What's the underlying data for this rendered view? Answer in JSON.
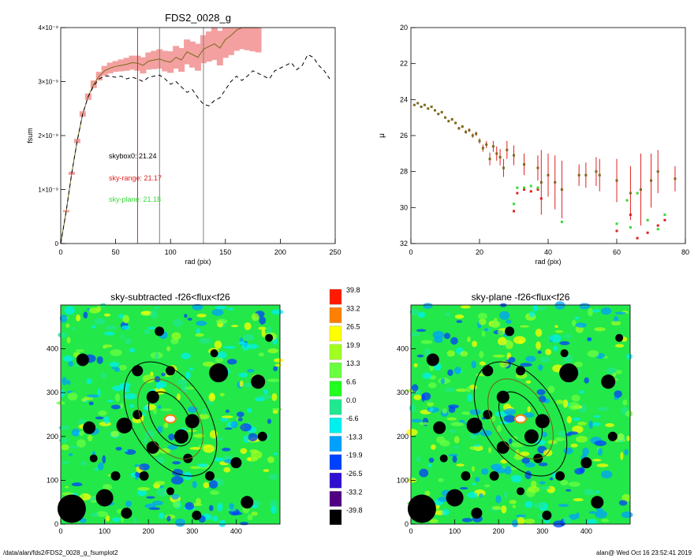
{
  "footer": {
    "path": "/data/alan/fds2/FDS2_0028_g_fsumplot2",
    "stamp": "alan@  Wed Oct 16 23:52:41 2019"
  },
  "colors": {
    "profile": "#7a6a1a",
    "error_band": "#f4a0a0",
    "red_marker": "#e02020",
    "green_marker": "#38d838",
    "gray_line": "#808080",
    "dashed": "#000000"
  },
  "chart_data": [
    {
      "type": "line",
      "title": "FDS2_0028_g",
      "xlabel": "rad (pix)",
      "ylabel": "fsum",
      "xlim": [
        0,
        250
      ],
      "ylim": [
        0,
        4e-09
      ],
      "xticks": [
        "0",
        "50",
        "100",
        "150",
        "200",
        "250"
      ],
      "yticks": [
        "0",
        "1×10⁻⁹",
        "2×10⁻⁹",
        "3×10⁻⁹",
        "4×10⁻⁹"
      ],
      "vlines": [
        {
          "x": 70,
          "color": "red"
        },
        {
          "x": 90,
          "color": "gray"
        },
        {
          "x": 130,
          "color": "gray"
        }
      ],
      "annotations": [
        {
          "text": "skybox0: 21.24",
          "color": "black"
        },
        {
          "text": "sky-range: 21.17",
          "color": "red"
        },
        {
          "text": "sky-plane: 21.18",
          "color": "green"
        }
      ],
      "series": [
        {
          "style": "solid",
          "color": "brown",
          "band": "red",
          "x": [
            0,
            5,
            10,
            15,
            20,
            25,
            30,
            35,
            40,
            45,
            50,
            55,
            60,
            65,
            70,
            75,
            80,
            85,
            90,
            95,
            100,
            105,
            110,
            115,
            120,
            125,
            130,
            135,
            140,
            145,
            150,
            155,
            160,
            165,
            170,
            175,
            180
          ],
          "y": [
            0,
            6e-10,
            1.3e-09,
            1.9e-09,
            2.4e-09,
            2.72e-09,
            2.95e-09,
            3.1e-09,
            3.2e-09,
            3.25e-09,
            3.28e-09,
            3.3e-09,
            3.32e-09,
            3.35e-09,
            3.34e-09,
            3.3e-09,
            3.38e-09,
            3.4e-09,
            3.42e-09,
            3.38e-09,
            3.36e-09,
            3.45e-09,
            3.4e-09,
            3.55e-09,
            3.5e-09,
            3.45e-09,
            3.6e-09,
            3.65e-09,
            3.7e-09,
            3.62e-09,
            3.78e-09,
            3.85e-09,
            3.95e-09,
            4e-09,
            4e-09,
            4e-09,
            4e-09
          ],
          "err": [
            0,
            2e-11,
            3e-11,
            4e-11,
            5e-11,
            6e-11,
            7e-11,
            8e-11,
            9e-11,
            1e-10,
            1e-10,
            1.1e-10,
            1.2e-10,
            1.3e-10,
            1.4e-10,
            1.5e-10,
            1.6e-10,
            1.7e-10,
            1.8e-10,
            1.9e-10,
            2e-10,
            2.1e-10,
            2.2e-10,
            2.3e-10,
            2.4e-10,
            2.5e-10,
            2.6e-10,
            2.8e-10,
            3e-10,
            3.2e-10,
            3.4e-10,
            3.6e-10,
            3.8e-10,
            4e-10,
            4.2e-10,
            4.4e-10,
            4.6e-10
          ]
        },
        {
          "style": "dashed",
          "color": "black",
          "x": [
            0,
            5,
            10,
            15,
            20,
            25,
            30,
            35,
            40,
            45,
            50,
            55,
            60,
            65,
            70,
            75,
            80,
            85,
            90,
            95,
            100,
            105,
            110,
            115,
            120,
            125,
            130,
            135,
            140,
            145,
            150,
            155,
            160,
            165,
            170,
            175,
            180,
            185,
            190,
            195,
            200,
            205,
            210,
            215,
            220,
            225,
            230,
            235,
            240,
            245
          ],
          "y": [
            0,
            6e-10,
            1.3e-09,
            1.9e-09,
            2.4e-09,
            2.72e-09,
            2.92e-09,
            3.05e-09,
            3.1e-09,
            3.1e-09,
            3.08e-09,
            3.1e-09,
            3.05e-09,
            3.08e-09,
            3.05e-09,
            3e-09,
            3.08e-09,
            3.1e-09,
            3.12e-09,
            3.05e-09,
            2.95e-09,
            3e-09,
            2.9e-09,
            2.8e-09,
            2.85e-09,
            2.7e-09,
            2.58e-09,
            2.55e-09,
            2.65e-09,
            2.7e-09,
            2.85e-09,
            3e-09,
            3.1e-09,
            3.02e-09,
            3.1e-09,
            3.2e-09,
            3.15e-09,
            3.1e-09,
            3.05e-09,
            3.2e-09,
            3.25e-09,
            3.3e-09,
            3.35e-09,
            3.22e-09,
            3.3e-09,
            3.5e-09,
            3.45e-09,
            3.3e-09,
            3.2e-09,
            3.05e-09
          ]
        }
      ]
    },
    {
      "type": "scatter",
      "title": "",
      "xlabel": "rad (pix)",
      "ylabel": "μ",
      "xlim": [
        0,
        80
      ],
      "ylim": [
        32,
        20
      ],
      "xticks": [
        "0",
        "20",
        "40",
        "60",
        "80"
      ],
      "yticks": [
        "20",
        "22",
        "24",
        "26",
        "28",
        "30",
        "32"
      ],
      "series": [
        {
          "marker": "brown-square",
          "errorbar": "red",
          "x": [
            1,
            2,
            3,
            4,
            5,
            6,
            7,
            8,
            9,
            10,
            11,
            12,
            13,
            14,
            15,
            16,
            17,
            18,
            19,
            20,
            21,
            22,
            23,
            24,
            25,
            26,
            27,
            28,
            30,
            33,
            37,
            38,
            40,
            42,
            44,
            49,
            51,
            54,
            55,
            60,
            64,
            67,
            70,
            72,
            77
          ],
          "y": [
            24.3,
            24.2,
            24.4,
            24.3,
            24.5,
            24.4,
            24.6,
            24.8,
            24.7,
            25.0,
            25.2,
            25.1,
            25.3,
            25.6,
            25.5,
            25.8,
            25.7,
            26.0,
            25.9,
            26.3,
            26.7,
            26.5,
            27.3,
            26.6,
            27.0,
            27.2,
            27.8,
            26.8,
            27.1,
            27.6,
            27.8,
            28.6,
            28.2,
            28.6,
            29.0,
            28.2,
            28.2,
            28.0,
            28.2,
            28.5,
            29.2,
            29.0,
            28.5,
            28.0,
            28.4
          ],
          "err": [
            0.05,
            0.05,
            0.05,
            0.05,
            0.05,
            0.05,
            0.05,
            0.05,
            0.06,
            0.06,
            0.06,
            0.07,
            0.07,
            0.08,
            0.08,
            0.1,
            0.1,
            0.12,
            0.12,
            0.15,
            0.2,
            0.2,
            0.35,
            0.3,
            0.4,
            0.45,
            0.5,
            0.5,
            0.55,
            0.6,
            0.7,
            1.8,
            1.2,
            1.5,
            1.6,
            0.6,
            0.7,
            0.8,
            0.9,
            1.2,
            1.5,
            2.0,
            1.5,
            1.2,
            0.7
          ]
        },
        {
          "marker": "red-square",
          "x": [
            30,
            31,
            33,
            35,
            37,
            38,
            60,
            64,
            66,
            69,
            72,
            74
          ],
          "y": [
            30.2,
            29.2,
            29.0,
            29.1,
            29.0,
            29.5,
            31.3,
            30.4,
            31.7,
            31.4,
            31.0,
            30.7
          ]
        },
        {
          "marker": "green-square",
          "x": [
            30,
            31,
            33,
            35,
            37,
            44,
            60,
            63,
            64,
            66,
            69,
            72,
            74
          ],
          "y": [
            29.8,
            28.9,
            28.9,
            28.8,
            28.9,
            30.8,
            30.9,
            29.6,
            31.1,
            29.2,
            30.7,
            31.2,
            30.4
          ]
        }
      ]
    },
    {
      "type": "heatmap",
      "title": "sky-subtracted -f26<flux<f26",
      "xlim": [
        0,
        500
      ],
      "ylim": [
        0,
        500
      ],
      "xticks": [
        "0",
        "100",
        "200",
        "300",
        "400"
      ],
      "yticks": [
        "0",
        "100",
        "200",
        "300",
        "400"
      ],
      "ellipse_center": [
        250,
        240
      ]
    },
    {
      "type": "heatmap",
      "title": "sky-plane -f26<flux<f26",
      "xlim": [
        0,
        500
      ],
      "ylim": [
        0,
        500
      ],
      "xticks": [
        "0",
        "100",
        "200",
        "300",
        "400"
      ],
      "yticks": [
        "0",
        "100",
        "200",
        "300",
        "400"
      ],
      "ellipse_center": [
        250,
        240
      ]
    },
    {
      "type": "colorbar",
      "labels": [
        "39.8",
        "33.2",
        "26.5",
        "19.9",
        "13.3",
        "6.6",
        "0.0",
        "-6.6",
        "-13.3",
        "-19.9",
        "-26.5",
        "-33.2",
        "-39.8"
      ],
      "colors": [
        "#ff1a00",
        "#ff7f00",
        "#ffff00",
        "#a0ff20",
        "#6aff40",
        "#20ff20",
        "#20e890",
        "#00f0f0",
        "#00a0ff",
        "#0040ff",
        "#3010d0",
        "#500080",
        "#000000"
      ]
    }
  ]
}
